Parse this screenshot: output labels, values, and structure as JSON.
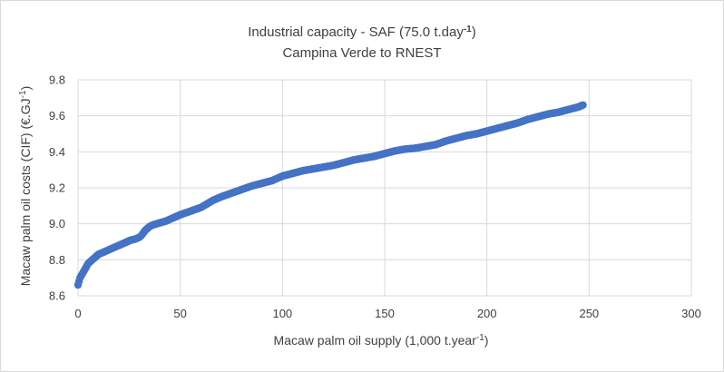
{
  "chart_data": {
    "type": "scatter",
    "title_main": "Industrial capacity - SAF (75.0 t.day",
    "title_main_sup": "-1",
    "title_main_end": ")",
    "subtitle": "Campina Verde to RNEST",
    "xlabel_main": "Macaw palm oil supply (1,000 t.year",
    "xlabel_sup": "-1",
    "xlabel_end": ")",
    "ylabel_main": "Macaw palm oil costs (CIF) (€.GJ",
    "ylabel_sup": "-1",
    "ylabel_end": ")",
    "xlim": [
      0,
      300
    ],
    "ylim": [
      8.6,
      9.8
    ],
    "xticks": [
      "0",
      "50",
      "100",
      "150",
      "200",
      "250",
      "300"
    ],
    "xtick_values": [
      0,
      50,
      100,
      150,
      200,
      250,
      300
    ],
    "yticks": [
      "8.6",
      "8.8",
      "9.0",
      "9.2",
      "9.4",
      "9.6",
      "9.8"
    ],
    "ytick_values": [
      8.6,
      8.8,
      9.0,
      9.2,
      9.4,
      9.6,
      9.8
    ],
    "grid": true,
    "series_color": "#4472c4",
    "x": [
      0,
      0.5,
      1,
      1.5,
      2,
      3,
      4,
      5,
      6,
      7,
      8,
      9,
      10,
      12,
      14,
      16,
      18,
      20,
      22,
      24,
      26,
      28,
      30,
      31,
      32,
      33,
      34,
      35,
      37,
      40,
      43,
      46,
      50,
      55,
      60,
      63,
      66,
      70,
      75,
      80,
      85,
      90,
      95,
      100,
      105,
      110,
      115,
      120,
      125,
      130,
      135,
      140,
      145,
      150,
      155,
      160,
      165,
      170,
      175,
      180,
      185,
      190,
      195,
      200,
      205,
      210,
      215,
      220,
      225,
      230,
      235,
      240,
      245,
      247
    ],
    "y": [
      8.66,
      8.68,
      8.7,
      8.71,
      8.72,
      8.74,
      8.76,
      8.78,
      8.79,
      8.8,
      8.81,
      8.82,
      8.83,
      8.84,
      8.85,
      8.86,
      8.87,
      8.88,
      8.89,
      8.9,
      8.91,
      8.915,
      8.925,
      8.935,
      8.95,
      8.965,
      8.975,
      8.985,
      8.995,
      9.005,
      9.015,
      9.03,
      9.05,
      9.07,
      9.09,
      9.11,
      9.13,
      9.15,
      9.17,
      9.19,
      9.21,
      9.225,
      9.24,
      9.265,
      9.28,
      9.295,
      9.305,
      9.315,
      9.325,
      9.34,
      9.355,
      9.365,
      9.375,
      9.39,
      9.405,
      9.415,
      9.42,
      9.43,
      9.44,
      9.46,
      9.475,
      9.49,
      9.5,
      9.515,
      9.53,
      9.545,
      9.56,
      9.58,
      9.595,
      9.61,
      9.62,
      9.635,
      9.65,
      9.66
    ]
  }
}
